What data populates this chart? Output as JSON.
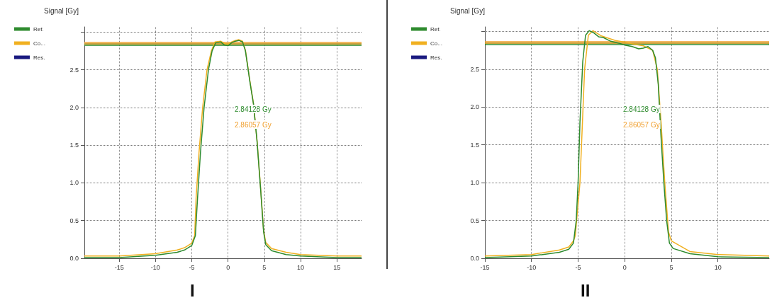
{
  "chart_data": [
    {
      "type": "line",
      "title": "I",
      "ylabel": "Signal [Gy]",
      "legend": "top left",
      "grid": true,
      "line_style": "solid",
      "marker": "none",
      "xlim": [
        -19.8,
        18.4
      ],
      "xticks": [
        -15,
        -10,
        -5,
        0,
        5,
        10,
        15
      ],
      "ylim": [
        0,
        3.07
      ],
      "yticks": [
        {
          "value": 0,
          "label": "0.0"
        },
        0.5,
        {
          "value": 1,
          "label": "1.0"
        },
        1.5,
        {
          "value": 2,
          "label": "2.0"
        },
        2.5,
        {
          "value": 3,
          "label": null
        }
      ],
      "series": [
        {
          "name": "Ref.",
          "color": "#2e8b2e",
          "x": [
            -19.8,
            -15,
            -10,
            -7,
            -6,
            -5,
            -4.5,
            -4.2,
            -3.8,
            -3.3,
            -2.7,
            -2.2,
            -1.7,
            -1,
            -0.5,
            0,
            0.5,
            1,
            1.5,
            2,
            2.4,
            3,
            3.5,
            4,
            4.5,
            4.9,
            5.2,
            6,
            8,
            10,
            15,
            18.4
          ],
          "values": [
            0.01,
            0.01,
            0.04,
            0.08,
            0.11,
            0.17,
            0.3,
            0.8,
            1.4,
            2,
            2.5,
            2.75,
            2.86,
            2.87,
            2.83,
            2.82,
            2.86,
            2.88,
            2.89,
            2.87,
            2.75,
            2.35,
            2.05,
            1.55,
            0.9,
            0.35,
            0.18,
            0.1,
            0.05,
            0.03,
            0.01,
            0.01
          ]
        },
        {
          "name": "Co...",
          "color": "#f0b020",
          "x": [
            -19.8,
            -15,
            -10,
            -7,
            -6,
            -5,
            -4.6,
            -4.4,
            -4,
            -3.5,
            -2.9,
            -2.3,
            -1.8,
            -1,
            -0.5,
            0,
            0.5,
            1,
            1.5,
            2,
            2.4,
            3,
            3.5,
            4,
            4.5,
            4.9,
            5.2,
            6,
            8,
            10,
            15,
            18.4
          ],
          "values": [
            0.03,
            0.03,
            0.06,
            0.11,
            0.14,
            0.2,
            0.3,
            0.8,
            1.4,
            2,
            2.5,
            2.75,
            2.87,
            2.88,
            2.85,
            2.84,
            2.87,
            2.89,
            2.9,
            2.88,
            2.76,
            2.36,
            2.06,
            1.56,
            0.92,
            0.37,
            0.21,
            0.13,
            0.08,
            0.05,
            0.03,
            0.03
          ]
        },
        {
          "name": "Res.",
          "color": "#1a1a80"
        }
      ],
      "ref_lines": [
        {
          "axis": "y",
          "value": 2.84128,
          "label": "2.84128 Gy",
          "color": "#2e8b2e"
        },
        {
          "axis": "y",
          "value": 2.86057,
          "label": "2.86057 Gy",
          "color": "#f0a030"
        }
      ]
    },
    {
      "type": "line",
      "title": "II",
      "ylabel": "Signal [Gy]",
      "legend": "top left",
      "grid": true,
      "line_style": "solid",
      "marker": "none",
      "xlim": [
        -15,
        15.5
      ],
      "xticks": [
        -15,
        -10,
        -5,
        0,
        5,
        10
      ],
      "ylim": [
        0,
        3.06
      ],
      "yticks": [
        {
          "value": 0,
          "label": "0.0"
        },
        0.5,
        {
          "value": 1,
          "label": "1.0"
        },
        1.5,
        {
          "value": 2,
          "label": "2.0"
        },
        2.5,
        {
          "value": 3,
          "label": null
        }
      ],
      "series": [
        {
          "name": "Ref.",
          "color": "#2e8b2e",
          "x": [
            -15,
            -10,
            -7,
            -6,
            -5.5,
            -5.2,
            -5,
            -4.8,
            -4.5,
            -4.2,
            -3.8,
            -3.3,
            -2.8,
            -2.3,
            -1.5,
            -0.5,
            0,
            0.8,
            1.5,
            2,
            2.5,
            3,
            3.3,
            3.6,
            3.9,
            4.2,
            4.5,
            4.8,
            5.2,
            7,
            10,
            15.5
          ],
          "values": [
            0.01,
            0.03,
            0.08,
            0.12,
            0.2,
            0.5,
            1,
            1.8,
            2.6,
            2.95,
            3.01,
            2.98,
            2.93,
            2.92,
            2.87,
            2.84,
            2.82,
            2.8,
            2.77,
            2.78,
            2.8,
            2.75,
            2.65,
            2.3,
            1.6,
            1,
            0.5,
            0.2,
            0.13,
            0.06,
            0.02,
            0.01
          ]
        },
        {
          "name": "Co...",
          "color": "#f0b020",
          "x": [
            -15,
            -10,
            -7,
            -6,
            -5.5,
            -5.3,
            -4.8,
            -4.3,
            -3.9,
            -3.4,
            -2.5,
            -1,
            0,
            1,
            2,
            3,
            3.5,
            3.9,
            4.3,
            4.7,
            5,
            7,
            10,
            15.5
          ],
          "values": [
            0.03,
            0.05,
            0.11,
            0.15,
            0.23,
            0.3,
            1,
            2.5,
            2.95,
            3.01,
            2.94,
            2.88,
            2.86,
            2.83,
            2.81,
            2.75,
            2.5,
            1.8,
            1,
            0.35,
            0.23,
            0.09,
            0.05,
            0.03
          ]
        },
        {
          "name": "Res.",
          "color": "#1a1a80"
        }
      ],
      "ref_lines": [
        {
          "axis": "y",
          "value": 2.84128,
          "label": "2.84128 Gy",
          "color": "#2e8b2e"
        },
        {
          "axis": "y",
          "value": 2.86057,
          "label": "2.86057 Gy",
          "color": "#f0a030"
        }
      ]
    }
  ]
}
